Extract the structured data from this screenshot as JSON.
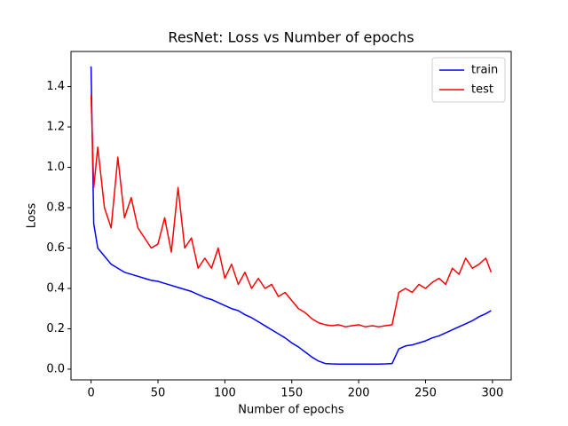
{
  "chart_data": {
    "type": "line",
    "title": "ResNet: Loss vs Number of epochs",
    "xlabel": "Number of epochs",
    "ylabel": "Loss",
    "x": [
      0,
      2,
      5,
      10,
      15,
      20,
      25,
      30,
      35,
      40,
      45,
      50,
      55,
      60,
      65,
      70,
      75,
      80,
      85,
      90,
      95,
      100,
      105,
      110,
      115,
      120,
      125,
      130,
      135,
      140,
      145,
      150,
      155,
      160,
      165,
      170,
      175,
      180,
      185,
      190,
      195,
      200,
      205,
      210,
      215,
      220,
      225,
      230,
      235,
      240,
      245,
      250,
      255,
      260,
      265,
      270,
      275,
      280,
      285,
      290,
      295,
      299
    ],
    "series": [
      {
        "name": "train",
        "color": "#0000ff",
        "values": [
          1.5,
          0.72,
          0.6,
          0.56,
          0.52,
          0.5,
          0.48,
          0.47,
          0.46,
          0.45,
          0.44,
          0.435,
          0.425,
          0.415,
          0.405,
          0.395,
          0.385,
          0.37,
          0.355,
          0.345,
          0.33,
          0.315,
          0.3,
          0.29,
          0.27,
          0.255,
          0.235,
          0.215,
          0.195,
          0.175,
          0.155,
          0.13,
          0.11,
          0.085,
          0.06,
          0.04,
          0.028,
          0.026,
          0.025,
          0.025,
          0.025,
          0.025,
          0.025,
          0.025,
          0.025,
          0.026,
          0.028,
          0.1,
          0.115,
          0.12,
          0.13,
          0.14,
          0.155,
          0.165,
          0.18,
          0.195,
          0.21,
          0.225,
          0.24,
          0.26,
          0.275,
          0.29
        ]
      },
      {
        "name": "test",
        "color": "#ff0000",
        "values": [
          1.36,
          0.9,
          1.1,
          0.8,
          0.7,
          1.05,
          0.75,
          0.85,
          0.7,
          0.65,
          0.6,
          0.62,
          0.75,
          0.58,
          0.9,
          0.6,
          0.65,
          0.5,
          0.55,
          0.5,
          0.6,
          0.45,
          0.52,
          0.42,
          0.48,
          0.4,
          0.45,
          0.4,
          0.42,
          0.36,
          0.38,
          0.34,
          0.3,
          0.28,
          0.25,
          0.23,
          0.22,
          0.215,
          0.22,
          0.21,
          0.215,
          0.22,
          0.21,
          0.215,
          0.21,
          0.215,
          0.22,
          0.38,
          0.4,
          0.38,
          0.42,
          0.4,
          0.43,
          0.45,
          0.42,
          0.5,
          0.47,
          0.55,
          0.5,
          0.52,
          0.55,
          0.48
        ]
      }
    ],
    "xlim": [
      -15,
      314
    ],
    "ylim": [
      -0.053,
      1.574
    ],
    "xticks": [
      0,
      50,
      100,
      150,
      200,
      250,
      300
    ],
    "yticks": [
      {
        "value": 0,
        "label": "0.0"
      },
      0.2,
      0.4,
      0.6,
      0.8,
      {
        "value": 1,
        "label": "1.0"
      },
      1.2,
      1.4
    ],
    "grid": false,
    "legend": "upper right"
  }
}
